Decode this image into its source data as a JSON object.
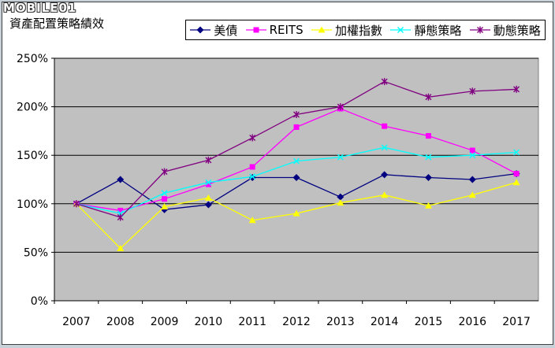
{
  "watermark": "MOBILE01",
  "chart_data": {
    "type": "line",
    "title": "資產配置策略績效",
    "xlabel": "",
    "ylabel": "",
    "categories": [
      "2007",
      "2008",
      "2009",
      "2010",
      "2011",
      "2012",
      "2013",
      "2014",
      "2015",
      "2016",
      "2017"
    ],
    "ylim": [
      0,
      250
    ],
    "yticks": [
      "0%",
      "50%",
      "100%",
      "150%",
      "200%",
      "250%"
    ],
    "grid": true,
    "legend_position": "top-right",
    "series": [
      {
        "name": "美債",
        "color": "#000080",
        "marker": "diamond",
        "values": [
          100,
          125,
          94,
          99,
          127,
          127,
          107,
          130,
          127,
          125,
          131
        ]
      },
      {
        "name": "REITS",
        "color": "#ff00ff",
        "marker": "square",
        "values": [
          100,
          93,
          105,
          120,
          138,
          179,
          198,
          180,
          170,
          155,
          131
        ]
      },
      {
        "name": "加權指數",
        "color": "#ffff00",
        "marker": "triangle",
        "values": [
          100,
          54,
          97,
          106,
          83,
          90,
          101,
          109,
          98,
          109,
          122
        ]
      },
      {
        "name": "靜態策略",
        "color": "#00ffff",
        "marker": "x",
        "values": [
          100,
          90,
          111,
          122,
          128,
          144,
          148,
          158,
          148,
          150,
          153
        ]
      },
      {
        "name": "動態策略",
        "color": "#800080",
        "marker": "star",
        "values": [
          100,
          86,
          133,
          145,
          168,
          192,
          200,
          226,
          210,
          216,
          218
        ]
      }
    ]
  }
}
